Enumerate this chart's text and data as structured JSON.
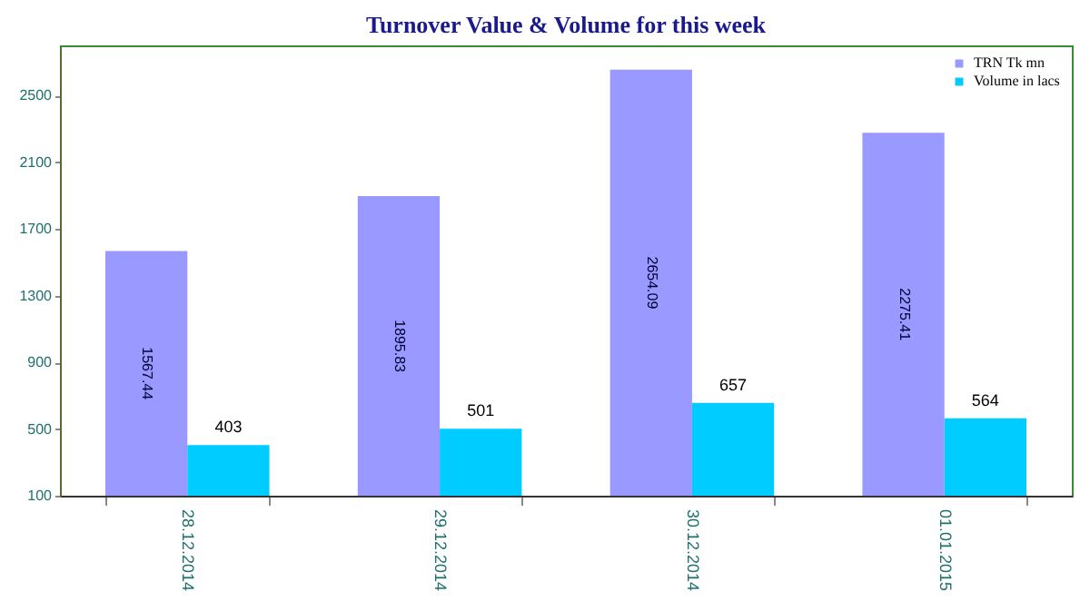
{
  "chart_data": {
    "type": "bar",
    "title": "Turnover Value & Volume for this week",
    "categories": [
      "28.12.2014",
      "29.12.2014",
      "30.12.2014",
      "01.01.2015"
    ],
    "series": [
      {
        "name": "TRN Tk mn",
        "color": "#9999ff",
        "values": [
          1567.44,
          1895.83,
          2654.09,
          2275.41
        ]
      },
      {
        "name": "Volume in lacs",
        "color": "#00ccff",
        "values": [
          403,
          501,
          657,
          564
        ]
      }
    ],
    "ylim": [
      100,
      2800
    ],
    "yticks": [
      100,
      500,
      900,
      1300,
      1700,
      2100,
      2500
    ],
    "data_labels": true,
    "grid": false,
    "legend": "top right"
  }
}
